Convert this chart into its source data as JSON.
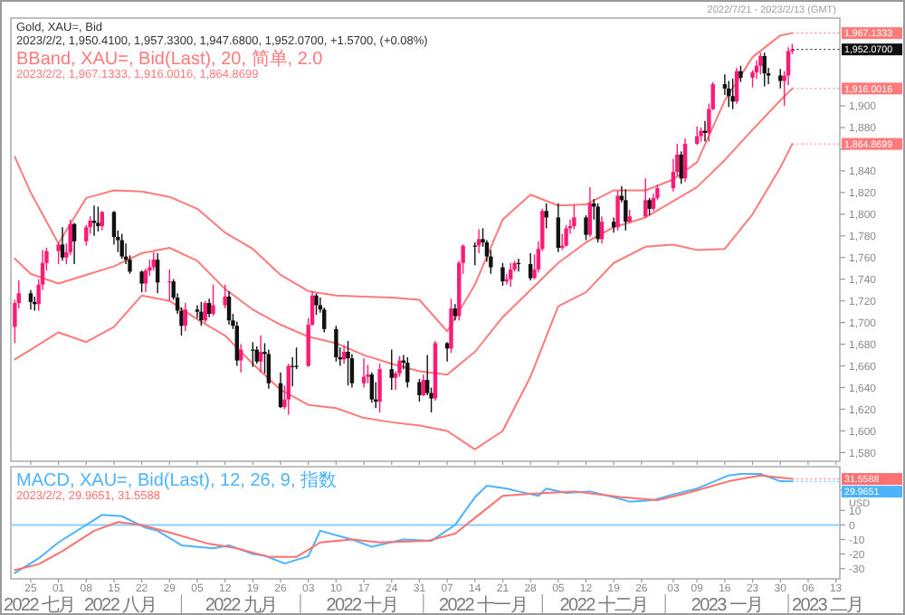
{
  "chart_data": [
    {
      "type": "candlestick",
      "title": "Gold, XAU=, Bid",
      "subtitle": "2023/2/2, 1,950.4100, 1,957.3300, 1,947.6800, 1,952.0700, +1.5700, (+0.08%)",
      "annotations": [
        "BBand, XAU=, Bid(Last), 20, 简单, 2.0",
        "2023/2/2, 1,967.1333, 1,916.0016, 1,864.8699",
        "2022/7/21 - 2023/2/13 (GMT)",
        "1,967.1333",
        "1,952.0700",
        "1,916.0016",
        "1,864.8699"
      ],
      "x": [
        "2022-07-21",
        "2022-07-22",
        "2022-07-25",
        "2022-07-26",
        "2022-07-27",
        "2022-07-28",
        "2022-07-29",
        "2022-08-01",
        "2022-08-02",
        "2022-08-03",
        "2022-08-04",
        "2022-08-05",
        "2022-08-08",
        "2022-08-09",
        "2022-08-10",
        "2022-08-11",
        "2022-08-12",
        "2022-08-15",
        "2022-08-16",
        "2022-08-17",
        "2022-08-18",
        "2022-08-19",
        "2022-08-22",
        "2022-08-23",
        "2022-08-24",
        "2022-08-25",
        "2022-08-26",
        "2022-08-29",
        "2022-08-30",
        "2022-08-31",
        "2022-09-01",
        "2022-09-02",
        "2022-09-05",
        "2022-09-06",
        "2022-09-07",
        "2022-09-08",
        "2022-09-09",
        "2022-09-12",
        "2022-09-13",
        "2022-09-14",
        "2022-09-15",
        "2022-09-16",
        "2022-09-19",
        "2022-09-20",
        "2022-09-21",
        "2022-09-22",
        "2022-09-23",
        "2022-09-26",
        "2022-09-27",
        "2022-09-28",
        "2022-09-29",
        "2022-09-30",
        "2022-10-03",
        "2022-10-04",
        "2022-10-05",
        "2022-10-06",
        "2022-10-07",
        "2022-10-10",
        "2022-10-11",
        "2022-10-12",
        "2022-10-13",
        "2022-10-14",
        "2022-10-17",
        "2022-10-18",
        "2022-10-19",
        "2022-10-20",
        "2022-10-21",
        "2022-10-24",
        "2022-10-25",
        "2022-10-26",
        "2022-10-27",
        "2022-10-28",
        "2022-10-31",
        "2022-11-01",
        "2022-11-02",
        "2022-11-03",
        "2022-11-04",
        "2022-11-07",
        "2022-11-08",
        "2022-11-09",
        "2022-11-10",
        "2022-11-11",
        "2022-11-14",
        "2022-11-15",
        "2022-11-16",
        "2022-11-17",
        "2022-11-18",
        "2022-11-21",
        "2022-11-22",
        "2022-11-23",
        "2022-11-24",
        "2022-11-25",
        "2022-11-28",
        "2022-11-29",
        "2022-11-30",
        "2022-12-01",
        "2022-12-02",
        "2022-12-05",
        "2022-12-06",
        "2022-12-07",
        "2022-12-08",
        "2022-12-09",
        "2022-12-12",
        "2022-12-13",
        "2022-12-14",
        "2022-12-15",
        "2022-12-16",
        "2022-12-19",
        "2022-12-20",
        "2022-12-21",
        "2022-12-22",
        "2022-12-23",
        "2022-12-27",
        "2022-12-28",
        "2022-12-29",
        "2022-12-30",
        "2023-01-03",
        "2023-01-04",
        "2023-01-05",
        "2023-01-06",
        "2023-01-09",
        "2023-01-10",
        "2023-01-11",
        "2023-01-12",
        "2023-01-13",
        "2023-01-16",
        "2023-01-17",
        "2023-01-18",
        "2023-01-19",
        "2023-01-20",
        "2023-01-23",
        "2023-01-24",
        "2023-01-25",
        "2023-01-26",
        "2023-01-27",
        "2023-01-30",
        "2023-01-31",
        "2023-02-01",
        "2023-02-02"
      ],
      "ohlc": [
        [
          1696,
          1721,
          1681,
          1718
        ],
        [
          1718,
          1739,
          1713,
          1727
        ],
        [
          1727,
          1730,
          1712,
          1719
        ],
        [
          1719,
          1724,
          1711,
          1717
        ],
        [
          1717,
          1740,
          1711,
          1735
        ],
        [
          1735,
          1767,
          1730,
          1755
        ],
        [
          1755,
          1769,
          1748,
          1766
        ],
        [
          1766,
          1774,
          1754,
          1772
        ],
        [
          1772,
          1788,
          1757,
          1760
        ],
        [
          1760,
          1773,
          1754,
          1765
        ],
        [
          1765,
          1795,
          1762,
          1791
        ],
        [
          1791,
          1792,
          1754,
          1775
        ],
        [
          1775,
          1790,
          1771,
          1788
        ],
        [
          1788,
          1798,
          1782,
          1794
        ],
        [
          1794,
          1808,
          1780,
          1792
        ],
        [
          1792,
          1807,
          1784,
          1789
        ],
        [
          1789,
          1803,
          1785,
          1802
        ],
        [
          1802,
          1803,
          1772,
          1779
        ],
        [
          1779,
          1785,
          1765,
          1776
        ],
        [
          1776,
          1782,
          1759,
          1761
        ],
        [
          1761,
          1773,
          1754,
          1758
        ],
        [
          1758,
          1762,
          1745,
          1747
        ],
        [
          1747,
          1748,
          1728,
          1736
        ],
        [
          1736,
          1750,
          1728,
          1748
        ],
        [
          1748,
          1758,
          1743,
          1751
        ],
        [
          1751,
          1765,
          1748,
          1758
        ],
        [
          1758,
          1764,
          1727,
          1737
        ],
        [
          1737,
          1749,
          1720,
          1738
        ],
        [
          1738,
          1740,
          1721,
          1723
        ],
        [
          1723,
          1727,
          1708,
          1711
        ],
        [
          1711,
          1714,
          1688,
          1697
        ],
        [
          1697,
          1718,
          1692,
          1712
        ],
        [
          1712,
          1716,
          1704,
          1710
        ],
        [
          1710,
          1719,
          1697,
          1702
        ],
        [
          1702,
          1720,
          1700,
          1718
        ],
        [
          1718,
          1722,
          1705,
          1708
        ],
        [
          1708,
          1735,
          1706,
          1716
        ],
        [
          1716,
          1735,
          1713,
          1724
        ],
        [
          1724,
          1729,
          1698,
          1702
        ],
        [
          1702,
          1708,
          1694,
          1697
        ],
        [
          1697,
          1701,
          1660,
          1665
        ],
        [
          1665,
          1680,
          1654,
          1675
        ],
        [
          1675,
          1682,
          1659,
          1675
        ],
        [
          1675,
          1678,
          1662,
          1664
        ],
        [
          1664,
          1688,
          1654,
          1673
        ],
        [
          1673,
          1681,
          1653,
          1671
        ],
        [
          1671,
          1675,
          1639,
          1644
        ],
        [
          1644,
          1654,
          1621,
          1622
        ],
        [
          1622,
          1642,
          1620,
          1629
        ],
        [
          1629,
          1662,
          1615,
          1660
        ],
        [
          1660,
          1668,
          1641,
          1660
        ],
        [
          1660,
          1677,
          1657,
          1660
        ],
        [
          1660,
          1704,
          1659,
          1698
        ],
        [
          1698,
          1729,
          1697,
          1725
        ],
        [
          1725,
          1727,
          1707,
          1716
        ],
        [
          1716,
          1723,
          1709,
          1712
        ],
        [
          1712,
          1714,
          1691,
          1694
        ],
        [
          1694,
          1697,
          1664,
          1668
        ],
        [
          1668,
          1677,
          1660,
          1666
        ],
        [
          1666,
          1679,
          1662,
          1673
        ],
        [
          1673,
          1683,
          1642,
          1667
        ],
        [
          1667,
          1671,
          1640,
          1644
        ],
        [
          1644,
          1667,
          1640,
          1650
        ],
        [
          1650,
          1661,
          1644,
          1652
        ],
        [
          1652,
          1654,
          1626,
          1629
        ],
        [
          1629,
          1645,
          1621,
          1627
        ],
        [
          1627,
          1662,
          1617,
          1657
        ],
        [
          1657,
          1675,
          1638,
          1649
        ],
        [
          1649,
          1655,
          1638,
          1653
        ],
        [
          1653,
          1669,
          1650,
          1665
        ],
        [
          1665,
          1670,
          1657,
          1663
        ],
        [
          1663,
          1668,
          1640,
          1645
        ],
        [
          1645,
          1648,
          1627,
          1633
        ],
        [
          1633,
          1652,
          1632,
          1647
        ],
        [
          1647,
          1670,
          1633,
          1635
        ],
        [
          1635,
          1640,
          1617,
          1630
        ],
        [
          1630,
          1683,
          1628,
          1681
        ],
        [
          1681,
          1682,
          1664,
          1676
        ],
        [
          1676,
          1722,
          1672,
          1713
        ],
        [
          1713,
          1717,
          1702,
          1706
        ],
        [
          1706,
          1757,
          1702,
          1755
        ],
        [
          1755,
          1772,
          1745,
          1771
        ],
        [
          1771,
          1774,
          1753,
          1771
        ],
        [
          1771,
          1786,
          1764,
          1777
        ],
        [
          1777,
          1787,
          1770,
          1774
        ],
        [
          1774,
          1776,
          1756,
          1761
        ],
        [
          1761,
          1767,
          1745,
          1751
        ],
        [
          1751,
          1755,
          1734,
          1738
        ],
        [
          1738,
          1745,
          1735,
          1740
        ],
        [
          1740,
          1755,
          1733,
          1749
        ],
        [
          1749,
          1757,
          1747,
          1755
        ],
        [
          1755,
          1759,
          1747,
          1754
        ],
        [
          1754,
          1764,
          1739,
          1741
        ],
        [
          1741,
          1763,
          1740,
          1749
        ],
        [
          1749,
          1775,
          1746,
          1768
        ],
        [
          1768,
          1805,
          1766,
          1803
        ],
        [
          1803,
          1810,
          1787,
          1797
        ],
        [
          1797,
          1810,
          1765,
          1769
        ],
        [
          1769,
          1782,
          1767,
          1771
        ],
        [
          1771,
          1790,
          1770,
          1787
        ],
        [
          1787,
          1795,
          1782,
          1789
        ],
        [
          1789,
          1809,
          1786,
          1797
        ],
        [
          1797,
          1799,
          1776,
          1781
        ],
        [
          1781,
          1825,
          1779,
          1810
        ],
        [
          1810,
          1814,
          1795,
          1807
        ],
        [
          1807,
          1810,
          1774,
          1777
        ],
        [
          1777,
          1798,
          1773,
          1793
        ],
        [
          1793,
          1797,
          1783,
          1788
        ],
        [
          1788,
          1822,
          1785,
          1817
        ],
        [
          1817,
          1826,
          1811,
          1813
        ],
        [
          1813,
          1823,
          1785,
          1793
        ],
        [
          1793,
          1804,
          1792,
          1798
        ],
        [
          1798,
          1833,
          1797,
          1813
        ],
        [
          1813,
          1815,
          1799,
          1805
        ],
        [
          1805,
          1819,
          1803,
          1815
        ],
        [
          1815,
          1827,
          1813,
          1824
        ],
        [
          1824,
          1851,
          1821,
          1839
        ],
        [
          1839,
          1865,
          1835,
          1855
        ],
        [
          1855,
          1858,
          1828,
          1833
        ],
        [
          1833,
          1870,
          1830,
          1865
        ],
        [
          1865,
          1881,
          1864,
          1872
        ],
        [
          1872,
          1880,
          1867,
          1877
        ],
        [
          1877,
          1886,
          1867,
          1875
        ],
        [
          1875,
          1902,
          1867,
          1897
        ],
        [
          1897,
          1922,
          1896,
          1920
        ],
        [
          1920,
          1929,
          1910,
          1916
        ],
        [
          1916,
          1923,
          1899,
          1909
        ],
        [
          1909,
          1925,
          1897,
          1904
        ],
        [
          1904,
          1935,
          1902,
          1932
        ],
        [
          1932,
          1937,
          1922,
          1926
        ],
        [
          1926,
          1933,
          1917,
          1931
        ],
        [
          1931,
          1942,
          1925,
          1937
        ],
        [
          1937,
          1949,
          1929,
          1946
        ],
        [
          1946,
          1949,
          1918,
          1930
        ],
        [
          1930,
          1935,
          1920,
          1928
        ],
        [
          1928,
          1934,
          1916,
          1923
        ],
        [
          1923,
          1932,
          1900,
          1928
        ],
        [
          1928,
          1954,
          1919,
          1950.5
        ],
        [
          1950.41,
          1957.33,
          1947.68,
          1952.07
        ]
      ],
      "colors": [
        "#ff1a75",
        "#ff1a75",
        "#111111",
        "#111111",
        "#ff1a75",
        "#ff1a75",
        "#ff1a75",
        "#ff1a75",
        "#111111",
        "#ff1a75",
        "#ff1a75",
        "#111111",
        "#ff1a75",
        "#ff1a75",
        "#111111",
        "#111111",
        "#ff1a75",
        "#111111",
        "#111111",
        "#111111",
        "#111111",
        "#111111",
        "#111111",
        "#ff1a75",
        "#ff1a75",
        "#ff1a75",
        "#111111",
        "#ff1a75",
        "#111111",
        "#111111",
        "#111111",
        "#ff1a75",
        "#111111",
        "#111111",
        "#ff1a75",
        "#111111",
        "#ff1a75",
        "#ff1a75",
        "#111111",
        "#111111",
        "#111111",
        "#ff1a75",
        "#111111",
        "#111111",
        "#ff1a75",
        "#111111",
        "#111111",
        "#111111",
        "#ff1a75",
        "#ff1a75",
        "#111111",
        "#111111",
        "#ff1a75",
        "#ff1a75",
        "#111111",
        "#111111",
        "#111111",
        "#111111",
        "#111111",
        "#ff1a75",
        "#111111",
        "#111111",
        "#ff1a75",
        "#ff1a75",
        "#111111",
        "#111111",
        "#ff1a75",
        "#111111",
        "#ff1a75",
        "#ff1a75",
        "#111111",
        "#111111",
        "#111111",
        "#ff1a75",
        "#111111",
        "#111111",
        "#ff1a75",
        "#111111",
        "#ff1a75",
        "#111111",
        "#ff1a75",
        "#ff1a75",
        "#111111",
        "#ff1a75",
        "#111111",
        "#111111",
        "#111111",
        "#111111",
        "#ff1a75",
        "#ff1a75",
        "#ff1a75",
        "#111111",
        "#111111",
        "#ff1a75",
        "#ff1a75",
        "#ff1a75",
        "#111111",
        "#111111",
        "#ff1a75",
        "#ff1a75",
        "#ff1a75",
        "#ff1a75",
        "#111111",
        "#ff1a75",
        "#111111",
        "#111111",
        "#ff1a75",
        "#111111",
        "#ff1a75",
        "#111111",
        "#111111",
        "#ff1a75",
        "#ff1a75",
        "#111111",
        "#ff1a75",
        "#ff1a75",
        "#ff1a75",
        "#ff1a75",
        "#111111",
        "#ff1a75",
        "#ff1a75",
        "#ff1a75",
        "#111111",
        "#ff1a75",
        "#ff1a75",
        "#111111",
        "#111111",
        "#111111",
        "#ff1a75",
        "#111111",
        "#ff1a75",
        "#ff1a75",
        "#ff1a75",
        "#111111",
        "#111111",
        "#111111",
        "#ff1a75",
        "#ff1a75",
        "#ff1a75"
      ],
      "series": [
        {
          "type": "line",
          "color": "#ff7a7a",
          "x": [
            "2022-07-21",
            "2022-07-25",
            "2022-08-01",
            "2022-08-08",
            "2022-08-15",
            "2022-08-22",
            "2022-08-29",
            "2022-09-05",
            "2022-09-12",
            "2022-09-19",
            "2022-09-26",
            "2022-10-03",
            "2022-10-10",
            "2022-10-17",
            "2022-10-24",
            "2022-10-31",
            "2022-11-07",
            "2022-11-14",
            "2022-11-21",
            "2022-11-28",
            "2022-12-05",
            "2022-12-12",
            "2022-12-19",
            "2022-12-27",
            "2023-01-03",
            "2023-01-09",
            "2023-01-16",
            "2023-01-23",
            "2023-01-30",
            "2023-02-02"
          ],
          "values": [
            1853,
            1820,
            1773,
            1815,
            1822,
            1821,
            1816,
            1805,
            1783,
            1768,
            1744,
            1729,
            1725,
            1724,
            1723,
            1721,
            1692,
            1735,
            1795,
            1818,
            1808,
            1809,
            1822,
            1822,
            1832,
            1848,
            1905,
            1945,
            1965,
            1967.1333
          ]
        },
        {
          "type": "line",
          "color": "#ff7a7a",
          "x": [
            "2022-07-21",
            "2022-07-25",
            "2022-08-01",
            "2022-08-08",
            "2022-08-15",
            "2022-08-22",
            "2022-08-29",
            "2022-09-05",
            "2022-09-12",
            "2022-09-19",
            "2022-09-26",
            "2022-10-03",
            "2022-10-10",
            "2022-10-17",
            "2022-10-24",
            "2022-10-31",
            "2022-11-07",
            "2022-11-14",
            "2022-11-21",
            "2022-11-28",
            "2022-12-05",
            "2022-12-12",
            "2022-12-19",
            "2022-12-27",
            "2023-01-03",
            "2023-01-09",
            "2023-01-16",
            "2023-01-23",
            "2023-01-30",
            "2023-02-02"
          ],
          "values": [
            1759,
            1745,
            1736,
            1744,
            1752,
            1764,
            1769,
            1757,
            1731,
            1712,
            1698,
            1687,
            1681,
            1670,
            1662,
            1655,
            1652,
            1673,
            1705,
            1730,
            1755,
            1774,
            1788,
            1797,
            1812,
            1825,
            1850,
            1878,
            1905,
            1916.0016
          ]
        },
        {
          "type": "line",
          "color": "#ff7a7a",
          "x": [
            "2022-07-21",
            "2022-07-25",
            "2022-08-01",
            "2022-08-08",
            "2022-08-15",
            "2022-08-22",
            "2022-08-29",
            "2022-09-05",
            "2022-09-12",
            "2022-09-19",
            "2022-09-26",
            "2022-10-03",
            "2022-10-10",
            "2022-10-17",
            "2022-10-24",
            "2022-10-31",
            "2022-11-07",
            "2022-11-14",
            "2022-11-21",
            "2022-11-28",
            "2022-12-05",
            "2022-12-12",
            "2022-12-19",
            "2022-12-27",
            "2023-01-03",
            "2023-01-09",
            "2023-01-16",
            "2023-01-23",
            "2023-01-30",
            "2023-02-02"
          ],
          "values": [
            1666,
            1675,
            1691,
            1682,
            1696,
            1725,
            1720,
            1703,
            1688,
            1662,
            1638,
            1624,
            1621,
            1612,
            1608,
            1605,
            1600,
            1583,
            1600,
            1650,
            1715,
            1728,
            1755,
            1770,
            1772,
            1767,
            1768,
            1800,
            1843,
            1864.8699
          ]
        }
      ],
      "xlim": [
        "2022-07-20",
        "2023-02-14"
      ],
      "ylim": [
        1572,
        1981
      ],
      "yticks": [
        {
          "value": 1580,
          "label": "1,580"
        },
        {
          "value": 1600,
          "label": "1,600"
        },
        {
          "value": 1620,
          "label": "1,620"
        },
        {
          "value": 1640,
          "label": "1,640"
        },
        {
          "value": 1660,
          "label": "1,660"
        },
        {
          "value": 1680,
          "label": "1,680"
        },
        {
          "value": 1700,
          "label": "1,700"
        },
        {
          "value": 1720,
          "label": "1,720"
        },
        {
          "value": 1740,
          "label": "1,740"
        },
        {
          "value": 1760,
          "label": "1,760"
        },
        {
          "value": 1780,
          "label": "1,780"
        },
        {
          "value": 1800,
          "label": "1,800"
        },
        {
          "value": 1820,
          "label": "1,820"
        },
        {
          "value": 1840,
          "label": "1,840"
        },
        {
          "value": 1860,
          "label": null
        },
        {
          "value": 1880,
          "label": "1,880"
        },
        {
          "value": 1900,
          "label": "1,900"
        }
      ],
      "xticks": [
        {
          "value": "2022-07-25",
          "label": null
        },
        {
          "value": "2022-08-01",
          "label": null
        },
        {
          "value": "2022-08-08",
          "label": null
        },
        {
          "value": "2022-08-15",
          "label": null
        },
        {
          "value": "2022-08-22",
          "label": null
        },
        {
          "value": "2022-08-29",
          "label": null
        },
        {
          "value": "2022-09-05",
          "label": null
        },
        {
          "value": "2022-09-12",
          "label": null
        },
        {
          "value": "2022-09-19",
          "label": null
        },
        {
          "value": "2022-09-26",
          "label": null
        },
        {
          "value": "2022-10-03",
          "label": null
        },
        {
          "value": "2022-10-10",
          "label": null
        },
        {
          "value": "2022-10-17",
          "label": null
        },
        {
          "value": "2022-10-24",
          "label": null
        },
        {
          "value": "2022-10-31",
          "label": null
        },
        {
          "value": "2022-11-07",
          "label": null
        },
        {
          "value": "2022-11-14",
          "label": null
        },
        {
          "value": "2022-11-21",
          "label": null
        },
        {
          "value": "2022-11-28",
          "label": null
        },
        {
          "value": "2022-12-05",
          "label": null
        },
        {
          "value": "2022-12-12",
          "label": null
        },
        {
          "value": "2022-12-19",
          "label": null
        },
        {
          "value": "2022-12-26",
          "label": null
        },
        {
          "value": "2023-01-03",
          "label": null
        },
        {
          "value": "2023-01-09",
          "label": null
        },
        {
          "value": "2023-01-16",
          "label": null
        },
        {
          "value": "2023-01-23",
          "label": null
        },
        {
          "value": "2023-01-30",
          "label": null
        },
        {
          "value": "2023-02-06",
          "label": null
        },
        {
          "value": "2023-02-13",
          "label": null
        }
      ],
      "tick_labels": "y"
    },
    {
      "type": "line",
      "title": "MACD, XAU=, Bid(Last), 12, 26, 9, 指数",
      "subtitle": "2023/2/2, 29.9651, 31.5588",
      "ylabel": "USD",
      "series": [
        {
          "color": "#4db3ff",
          "x": [
            "2022-07-21",
            "2022-07-27",
            "2022-08-01",
            "2022-08-10",
            "2022-08-12",
            "2022-08-17",
            "2022-08-23",
            "2022-08-26",
            "2022-09-01",
            "2022-09-09",
            "2022-09-13",
            "2022-09-19",
            "2022-09-22",
            "2022-09-27",
            "2022-10-03",
            "2022-10-06",
            "2022-10-10",
            "2022-10-14",
            "2022-10-19",
            "2022-10-27",
            "2022-11-03",
            "2022-11-09",
            "2022-11-14",
            "2022-11-17",
            "2022-11-22",
            "2022-11-25",
            "2022-11-30",
            "2022-12-02",
            "2022-12-07",
            "2022-12-13",
            "2022-12-19",
            "2022-12-23",
            "2022-12-29",
            "2023-01-03",
            "2023-01-09",
            "2023-01-17",
            "2023-01-20",
            "2023-01-25",
            "2023-01-30",
            "2023-02-02"
          ],
          "values": [
            -33,
            -23,
            -12,
            3.5,
            7,
            6,
            -2,
            -4,
            -14,
            -16,
            -14,
            -20,
            -21,
            -26.5,
            -21.5,
            -4,
            -7,
            -10,
            -15,
            -10,
            -11,
            0,
            19,
            27,
            25,
            23,
            20,
            25,
            22,
            23,
            19,
            16,
            17,
            21,
            25,
            34,
            35,
            35,
            30,
            29.9651
          ]
        },
        {
          "color": "#ff7070",
          "x": [
            "2022-07-21",
            "2022-07-27",
            "2022-08-02",
            "2022-08-10",
            "2022-08-16",
            "2022-08-22",
            "2022-08-30",
            "2022-09-08",
            "2022-09-15",
            "2022-09-23",
            "2022-09-30",
            "2022-10-06",
            "2022-10-14",
            "2022-10-21",
            "2022-11-02",
            "2022-11-09",
            "2022-11-15",
            "2022-11-21",
            "2022-11-29",
            "2022-12-09",
            "2022-12-21",
            "2022-12-30",
            "2023-01-06",
            "2023-01-17",
            "2023-01-25",
            "2023-02-02"
          ],
          "values": [
            -31,
            -27,
            -18,
            -4,
            2,
            0,
            -6,
            -13,
            -16,
            -22,
            -22,
            -12,
            -10,
            -12,
            -11,
            -6,
            7,
            20,
            21.5,
            23,
            19,
            17,
            21.5,
            30,
            34,
            31.5588
          ]
        }
      ],
      "ref_lines": [
        {
          "axis": "y",
          "value": 0,
          "color": "#8fcfff"
        }
      ],
      "annotations": [
        {
          "text": "31.5588",
          "x": "2023-02-02",
          "y": 31.5588
        },
        {
          "text": "29.9651",
          "x": "2023-02-02",
          "y": 29.9651
        },
        "2022 七月",
        "2022 八月",
        "2022 九月",
        "2022 十月",
        "2022 十一月",
        "2022 十二月",
        "2023 一月",
        "2023 二月"
      ],
      "xlim": [
        "2022-07-20",
        "2023-02-14"
      ],
      "ylim": [
        -37,
        40
      ],
      "yticks": [
        -30,
        -20,
        -10,
        0,
        10
      ],
      "xticks": [
        {
          "value": "2022-07-25",
          "label": "25"
        },
        {
          "value": "2022-08-01",
          "label": "01"
        },
        {
          "value": "2022-08-08",
          "label": "08"
        },
        {
          "value": "2022-08-15",
          "label": "15"
        },
        {
          "value": "2022-08-22",
          "label": "22"
        },
        {
          "value": "2022-08-29",
          "label": "29"
        },
        {
          "value": "2022-09-05",
          "label": "05"
        },
        {
          "value": "2022-09-12",
          "label": "12"
        },
        {
          "value": "2022-09-19",
          "label": "19"
        },
        {
          "value": "2022-09-26",
          "label": "26"
        },
        {
          "value": "2022-10-03",
          "label": "03"
        },
        {
          "value": "2022-10-10",
          "label": "10"
        },
        {
          "value": "2022-10-17",
          "label": "17"
        },
        {
          "value": "2022-10-24",
          "label": "24"
        },
        {
          "value": "2022-10-31",
          "label": "31"
        },
        {
          "value": "2022-11-07",
          "label": "07"
        },
        {
          "value": "2022-11-14",
          "label": "14"
        },
        {
          "value": "2022-11-21",
          "label": "21"
        },
        {
          "value": "2022-11-28",
          "label": "28"
        },
        {
          "value": "2022-12-05",
          "label": "05"
        },
        {
          "value": "2022-12-12",
          "label": "12"
        },
        {
          "value": "2022-12-19",
          "label": "19"
        },
        {
          "value": "2022-12-26",
          "label": "26"
        },
        {
          "value": "2023-01-03",
          "label": "03"
        },
        {
          "value": "2023-01-09",
          "label": "09"
        },
        {
          "value": "2023-01-16",
          "label": "16"
        },
        {
          "value": "2023-01-23",
          "label": "23"
        },
        {
          "value": "2023-01-30",
          "label": "30"
        },
        {
          "value": "2023-02-06",
          "label": "06"
        },
        {
          "value": "2023-02-13",
          "label": "13"
        }
      ]
    }
  ]
}
